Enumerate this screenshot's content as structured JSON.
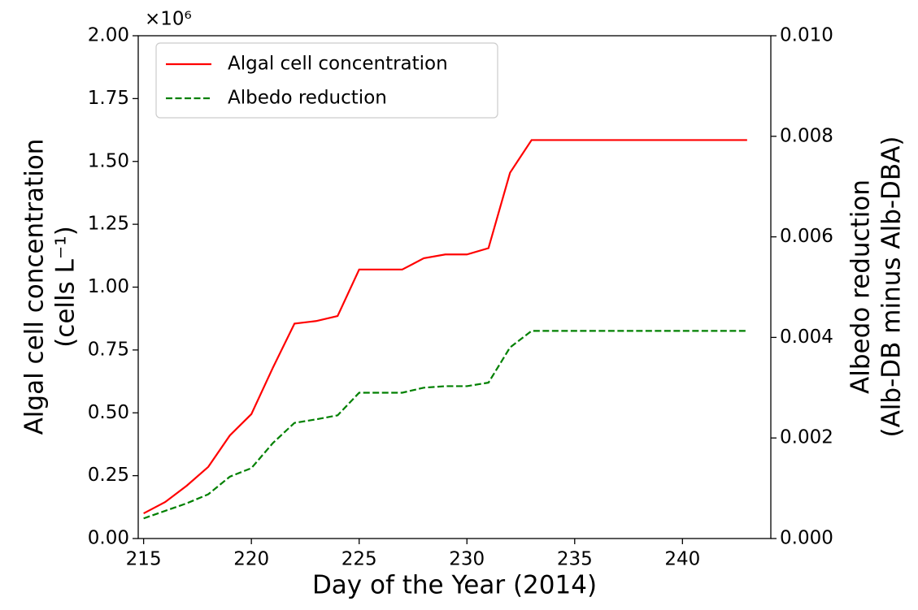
{
  "chart_data": {
    "type": "line",
    "xlabel": "Day of the Year (2014)",
    "ylabel": [
      "Algal cell concentration",
      "(cells L⁻¹)"
    ],
    "y2label": [
      "Albedo reduction",
      "(Alb-DB minus Alb-DBA)"
    ],
    "y_offset_text": "×10⁶",
    "x": [
      215,
      216,
      217,
      218,
      219,
      220,
      221,
      222,
      223,
      224,
      225,
      226,
      227,
      228,
      229,
      230,
      231,
      232,
      233,
      234,
      235,
      236,
      237,
      238,
      239,
      240,
      241,
      242,
      243
    ],
    "series": [
      {
        "name": "Algal cell concentration",
        "color": "#ff0000",
        "dash": "solid",
        "values": [
          0.1,
          0.145,
          0.21,
          0.285,
          0.41,
          0.495,
          0.68,
          0.855,
          0.865,
          0.885,
          1.07,
          1.07,
          1.07,
          1.115,
          1.13,
          1.13,
          1.155,
          1.455,
          1.585,
          1.585,
          1.585,
          1.585,
          1.585,
          1.585,
          1.585,
          1.585,
          1.585,
          1.585,
          1.585
        ]
      },
      {
        "name": "Albedo reduction",
        "color": "#008000",
        "dash": "dashed",
        "axis": "y2",
        "values": [
          0.0004,
          0.00055,
          0.0007,
          0.00088,
          0.00123,
          0.0014,
          0.0019,
          0.0023,
          0.00237,
          0.00245,
          0.0029,
          0.0029,
          0.0029,
          0.003,
          0.00303,
          0.00303,
          0.0031,
          0.0038,
          0.00413,
          0.00413,
          0.00413,
          0.00413,
          0.00413,
          0.00413,
          0.00413,
          0.00413,
          0.00413,
          0.00413,
          0.00413
        ]
      }
    ],
    "xlim": [
      214.75,
      244.1
    ],
    "xticks": [
      215,
      220,
      225,
      230,
      235,
      240
    ],
    "ylim": [
      0,
      2
    ],
    "yticks": [
      {
        "value": 0,
        "label": "0.00"
      },
      {
        "value": 0.25,
        "label": "0.25"
      },
      {
        "value": 0.5,
        "label": "0.50"
      },
      {
        "value": 0.75,
        "label": "0.75"
      },
      {
        "value": 1,
        "label": "1.00"
      },
      {
        "value": 1.25,
        "label": "1.25"
      },
      {
        "value": 1.5,
        "label": "1.50"
      },
      {
        "value": 1.75,
        "label": "1.75"
      },
      {
        "value": 2,
        "label": "2.00"
      }
    ],
    "y2lim": [
      0,
      0.01
    ],
    "y2ticks": [
      {
        "value": 0,
        "label": "0.000"
      },
      {
        "value": 0.002,
        "label": "0.002"
      },
      {
        "value": 0.004,
        "label": "0.004"
      },
      {
        "value": 0.006,
        "label": "0.006"
      },
      {
        "value": 0.008,
        "label": "0.008"
      },
      {
        "value": 0.01,
        "label": "0.010"
      }
    ],
    "legend": "upper left",
    "grid": false
  }
}
